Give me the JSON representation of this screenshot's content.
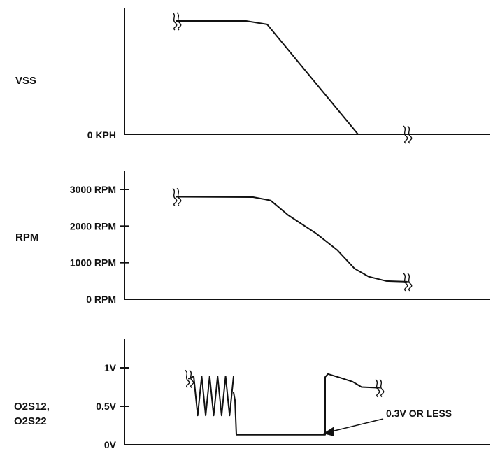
{
  "chart_data": [
    {
      "type": "line",
      "title": "",
      "ylabel": "VSS",
      "yticks": [
        "0 KPH"
      ],
      "x": [
        0,
        1.0,
        1.3,
        2.6,
        3.3
      ],
      "values": [
        1,
        1,
        0.97,
        0,
        0
      ],
      "breaks": [
        {
          "x": 0,
          "y": 1
        },
        {
          "x": 3.3,
          "y": 0
        }
      ]
    },
    {
      "type": "line",
      "title": "",
      "ylabel": "RPM",
      "yticks": [
        "0 RPM",
        "1000 RPM",
        "2000 RPM",
        "3000 RPM"
      ],
      "ytick_values": [
        0,
        1000,
        2000,
        3000
      ],
      "ylim": [
        0,
        3400
      ],
      "x": [
        0,
        1.1,
        1.35,
        1.6,
        2.0,
        2.3,
        2.55,
        2.75,
        3.0,
        3.3
      ],
      "values": [
        2800,
        2790,
        2700,
        2300,
        1800,
        1350,
        840,
        620,
        500,
        480
      ],
      "breaks": [
        {
          "x": 0,
          "y": 2800
        },
        {
          "x": 3.3,
          "y": 480
        }
      ]
    },
    {
      "type": "line",
      "title": "",
      "ylabel": [
        "O2S12,",
        "O2S22"
      ],
      "yticks": [
        "0V",
        "0.5V",
        "1V"
      ],
      "ytick_values": [
        0,
        0.5,
        1
      ],
      "ylim": [
        0,
        1.3
      ],
      "oscillation": {
        "x_start": 0.25,
        "x_end": 0.82,
        "low": 0.38,
        "high": 0.89,
        "cycles": 5
      },
      "x": [
        0.82,
        0.84,
        0.86,
        2.13,
        2.13,
        2.17,
        2.35,
        2.52,
        2.65,
        2.9
      ],
      "values": [
        0.68,
        0.58,
        0.13,
        0.13,
        0.88,
        0.92,
        0.87,
        0.82,
        0.75,
        0.74
      ],
      "breaks": [
        {
          "x": 0.18,
          "y": 0.86
        },
        {
          "x": 2.9,
          "y": 0.74
        }
      ],
      "annotation": {
        "text": "0.3V OR LESS",
        "x": 2.05,
        "y": 0.13
      }
    }
  ]
}
